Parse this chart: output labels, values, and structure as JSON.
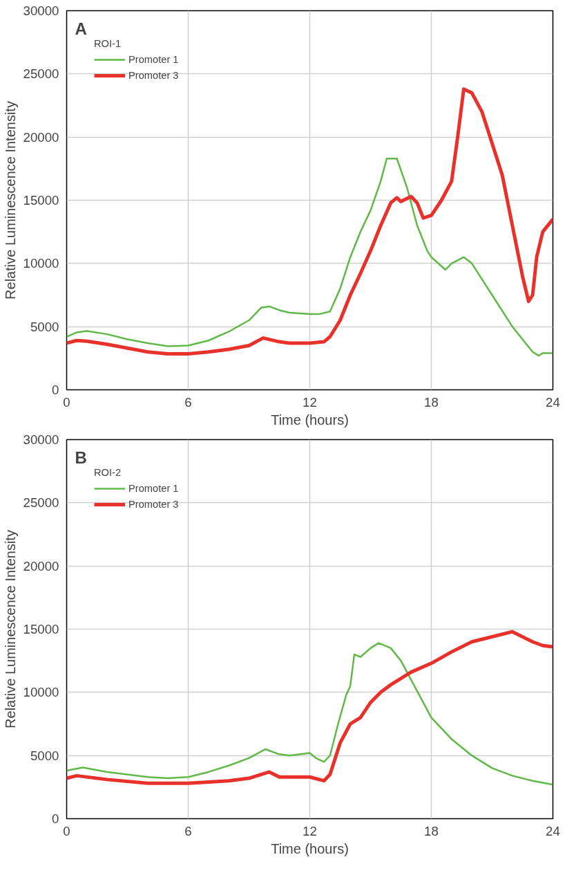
{
  "chart_data": [
    {
      "type": "line",
      "annotations": [
        "A"
      ],
      "xlabel": "Time (hours)",
      "ylabel": "Relative Luminescence Intensity",
      "legend_title": "ROI-1",
      "legend": "top left",
      "grid": true,
      "xlim": [
        0,
        24
      ],
      "ylim": [
        0,
        30000
      ],
      "xticks": [
        0,
        6,
        12,
        18,
        24
      ],
      "yticks": [
        0,
        5000,
        10000,
        15000,
        20000,
        25000,
        30000
      ],
      "series": [
        {
          "name": "Promoter 1",
          "color": "#5fb946",
          "x": [
            0,
            0.5,
            1,
            2,
            3,
            4,
            5,
            6,
            7,
            8,
            9,
            9.6,
            10,
            10.5,
            11,
            12,
            12.5,
            13,
            13.5,
            14,
            14.5,
            15,
            15.5,
            15.8,
            16.3,
            16.8,
            17.3,
            17.8,
            18,
            18.7,
            19,
            19.6,
            20,
            21,
            22,
            23,
            23.3,
            23.5,
            24
          ],
          "values": [
            4200,
            4550,
            4650,
            4400,
            4000,
            3700,
            3450,
            3500,
            3900,
            4600,
            5500,
            6500,
            6600,
            6300,
            6100,
            6000,
            6000,
            6200,
            8000,
            10500,
            12500,
            14200,
            16500,
            18300,
            18300,
            16000,
            13000,
            11000,
            10500,
            9500,
            10000,
            10500,
            10000,
            7500,
            5000,
            3000,
            2700,
            2900,
            2900
          ]
        },
        {
          "name": "Promoter 3",
          "color": "#e8312a",
          "x": [
            0,
            0.5,
            1,
            2,
            3,
            4,
            5,
            6,
            7,
            8,
            9,
            9.7,
            10.5,
            11,
            12,
            12.7,
            13,
            13.5,
            14,
            14.5,
            15,
            15.5,
            16,
            16.3,
            16.5,
            17,
            17.3,
            17.6,
            18,
            18.5,
            19,
            19.3,
            19.6,
            20,
            20.5,
            21,
            21.5,
            22,
            22.5,
            22.8,
            23,
            23.2,
            23.5,
            24
          ],
          "values": [
            3700,
            3900,
            3850,
            3600,
            3300,
            3000,
            2850,
            2850,
            3000,
            3200,
            3500,
            4100,
            3800,
            3700,
            3700,
            3800,
            4200,
            5500,
            7500,
            9200,
            11000,
            13000,
            14800,
            15200,
            14900,
            15300,
            14800,
            13600,
            13800,
            15000,
            16500,
            20000,
            23800,
            23500,
            22000,
            19500,
            17000,
            13000,
            9000,
            7000,
            7500,
            10500,
            12500,
            13500
          ]
        }
      ]
    },
    {
      "type": "line",
      "annotations": [
        "B"
      ],
      "xlabel": "Time (hours)",
      "ylabel": "Relative Luminescence Intensity",
      "legend_title": "ROI-2",
      "legend": "top left",
      "grid": true,
      "xlim": [
        0,
        24
      ],
      "ylim": [
        0,
        30000
      ],
      "xticks": [
        0,
        6,
        12,
        18,
        24
      ],
      "yticks": [
        0,
        5000,
        10000,
        15000,
        20000,
        25000,
        30000
      ],
      "series": [
        {
          "name": "Promoter 1",
          "color": "#5fb946",
          "x": [
            0,
            0.8,
            2,
            4,
            5,
            6,
            7,
            8,
            9,
            9.8,
            10.5,
            11,
            12,
            12.3,
            12.7,
            13,
            13.4,
            13.8,
            14,
            14.2,
            14.5,
            15,
            15.4,
            16,
            16.5,
            17,
            18,
            19,
            20,
            21,
            22,
            23,
            24
          ],
          "values": [
            3800,
            4050,
            3700,
            3300,
            3200,
            3300,
            3700,
            4200,
            4800,
            5500,
            5100,
            5000,
            5200,
            4800,
            4500,
            5000,
            7500,
            9800,
            10500,
            13000,
            12800,
            13500,
            13900,
            13500,
            12500,
            11000,
            8000,
            6300,
            5000,
            4000,
            3400,
            3000,
            2700
          ]
        },
        {
          "name": "Promoter 3",
          "color": "#e8312a",
          "x": [
            0,
            0.5,
            2,
            4,
            6,
            8,
            9,
            10,
            10.5,
            11,
            12,
            12.7,
            13,
            13.5,
            14,
            14.5,
            15,
            15.5,
            16,
            17,
            18,
            19,
            20,
            21,
            22,
            23,
            23.5,
            24
          ],
          "values": [
            3200,
            3400,
            3100,
            2800,
            2800,
            3000,
            3200,
            3700,
            3300,
            3300,
            3300,
            3000,
            3500,
            6000,
            7500,
            8000,
            9200,
            10000,
            10600,
            11600,
            12300,
            13200,
            14000,
            14400,
            14800,
            14000,
            13700,
            13600
          ]
        }
      ]
    }
  ]
}
